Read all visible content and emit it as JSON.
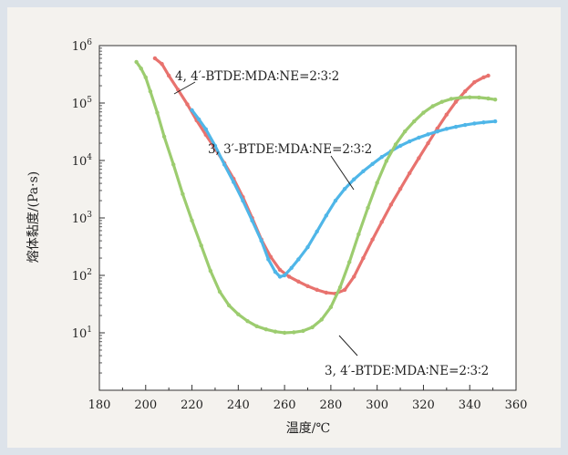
{
  "chart_data": {
    "type": "line",
    "xlabel": "温度/℃",
    "ylabel": "熔体黏度/(Pa·s)",
    "xlim": [
      180,
      360
    ],
    "ylim": [
      1,
      1000000
    ],
    "y_scale": "log",
    "grid": false,
    "x_ticks": [
      180,
      200,
      220,
      240,
      260,
      280,
      300,
      320,
      340,
      360
    ],
    "x_tick_labels": [
      "180",
      "200",
      "220",
      "240",
      "260",
      "280",
      "300",
      "320",
      "340",
      "360"
    ],
    "y_ticks": [
      10,
      100,
      1000,
      10000,
      100000,
      1000000
    ],
    "y_tick_labels": [
      {
        "base": "10",
        "exp": "1"
      },
      {
        "base": "10",
        "exp": "2"
      },
      {
        "base": "10",
        "exp": "3"
      },
      {
        "base": "10",
        "exp": "4"
      },
      {
        "base": "10",
        "exp": "5"
      },
      {
        "base": "10",
        "exp": "6"
      }
    ],
    "series": [
      {
        "color": "#e8726e",
        "x": [
          204,
          207,
          210,
          214,
          218,
          222,
          226,
          230,
          234,
          238,
          242,
          246,
          250,
          254,
          258,
          262,
          266,
          270,
          274,
          278,
          282,
          286,
          290,
          294,
          298,
          302,
          306,
          310,
          314,
          318,
          322,
          326,
          330,
          334,
          338,
          342,
          346,
          348
        ],
        "y": [
          600000,
          480000,
          300000,
          170000,
          95000,
          50000,
          28000,
          16000,
          9000,
          4800,
          2300,
          1000,
          420,
          210,
          125,
          95,
          78,
          65,
          56,
          50,
          48,
          56,
          95,
          200,
          420,
          850,
          1700,
          3200,
          6000,
          11000,
          20000,
          36000,
          63000,
          105000,
          160000,
          230000,
          280000,
          300000
        ]
      },
      {
        "color": "#4fb6e8",
        "x": [
          220,
          223,
          226,
          230,
          234,
          238,
          242,
          246,
          250,
          253,
          256,
          258,
          260,
          263,
          266,
          270,
          274,
          278,
          282,
          286,
          290,
          294,
          298,
          302,
          306,
          310,
          314,
          318,
          322,
          326,
          330,
          334,
          338,
          342,
          346,
          351
        ],
        "y": [
          75000,
          52000,
          35000,
          18000,
          8500,
          4200,
          2000,
          900,
          400,
          190,
          115,
          95,
          100,
          135,
          190,
          310,
          580,
          1100,
          2000,
          3200,
          4700,
          6500,
          8700,
          11500,
          14500,
          18000,
          21500,
          25000,
          28500,
          32000,
          35500,
          38500,
          41500,
          44000,
          46000,
          48000
        ]
      },
      {
        "color": "#9ccc6f",
        "x": [
          196,
          198,
          200,
          202,
          205,
          208,
          212,
          216,
          220,
          224,
          228,
          232,
          236,
          240,
          244,
          248,
          252,
          256,
          260,
          264,
          268,
          272,
          276,
          280,
          284,
          288,
          292,
          296,
          300,
          304,
          308,
          312,
          316,
          320,
          324,
          328,
          332,
          336,
          340,
          344,
          348,
          351
        ],
        "y": [
          520000,
          400000,
          280000,
          160000,
          68000,
          26000,
          8500,
          2600,
          900,
          330,
          120,
          52,
          30,
          21,
          16,
          13,
          11.5,
          10.5,
          10,
          10.2,
          10.8,
          12.5,
          17,
          28,
          62,
          170,
          520,
          1500,
          4100,
          9800,
          19000,
          32000,
          48000,
          68000,
          88000,
          105000,
          118000,
          124000,
          126000,
          125000,
          120000,
          115000
        ]
      }
    ],
    "annotations": [
      {
        "text": "4, 4′-BTDE∶MDA∶NE=2∶3∶2",
        "series": 0
      },
      {
        "text": "3, 3′-BTDE∶MDA∶NE=2∶3∶2",
        "series": 1
      },
      {
        "text": "3, 4′-BTDE∶MDA∶NE=2∶3∶2",
        "series": 2
      }
    ]
  }
}
